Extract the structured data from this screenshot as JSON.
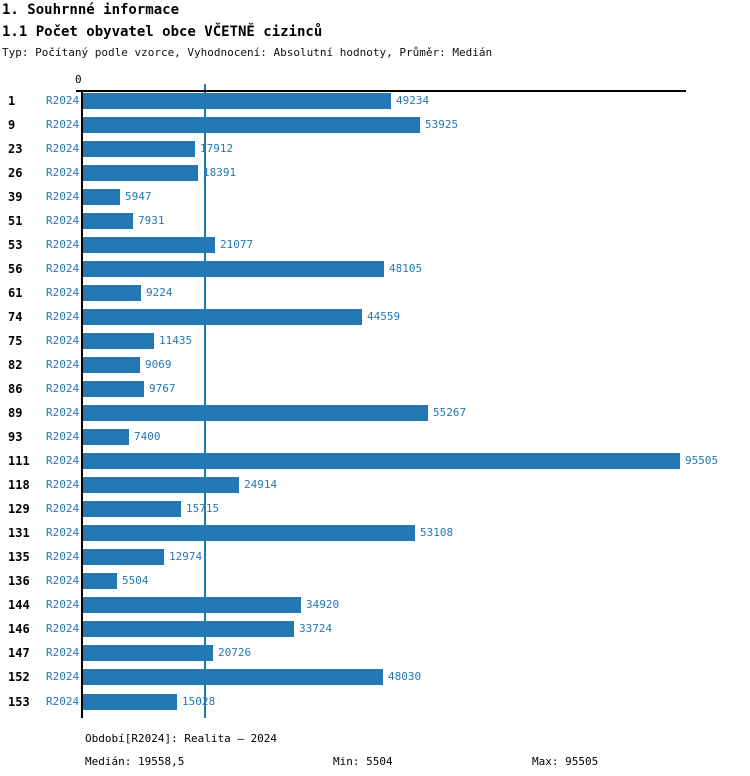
{
  "header": {
    "title1": "1. Souhrnné informace",
    "title2": "1.1 Počet obyvatel obce VČETNĚ cizinců",
    "subtitle": "Typ: Počítaný podle vzorce, Vyhodnocení: Absolutní hodnoty, Průměr: Medián"
  },
  "chart_data": {
    "type": "bar",
    "orientation": "horizontal",
    "title": "1.1 Počet obyvatel obce VČETNĚ cizinců",
    "series_label": "R2024",
    "categories": [
      "1",
      "9",
      "23",
      "26",
      "39",
      "51",
      "53",
      "56",
      "61",
      "74",
      "75",
      "82",
      "86",
      "89",
      "93",
      "111",
      "118",
      "129",
      "131",
      "135",
      "136",
      "144",
      "146",
      "147",
      "152",
      "153"
    ],
    "values": [
      49234,
      53925,
      17912,
      18391,
      5947,
      7931,
      21077,
      48105,
      9224,
      44559,
      11435,
      9069,
      9767,
      55267,
      7400,
      95505,
      24914,
      15715,
      53108,
      12974,
      5504,
      34920,
      33724,
      20726,
      48030,
      15028
    ],
    "xlim": [
      0,
      95505
    ],
    "zero_tick_label": "0",
    "median_value": 19558.5,
    "legend_position": "none",
    "grid": "median-line-only",
    "bar_color": "#2478b4",
    "label_color": "#2478b4",
    "axis_color": "#000000"
  },
  "footer": {
    "period": "Období[R2024]: Realita – 2024",
    "median": "Medián: 19558,5",
    "min": "Min: 5504",
    "max": "Max: 95505"
  }
}
